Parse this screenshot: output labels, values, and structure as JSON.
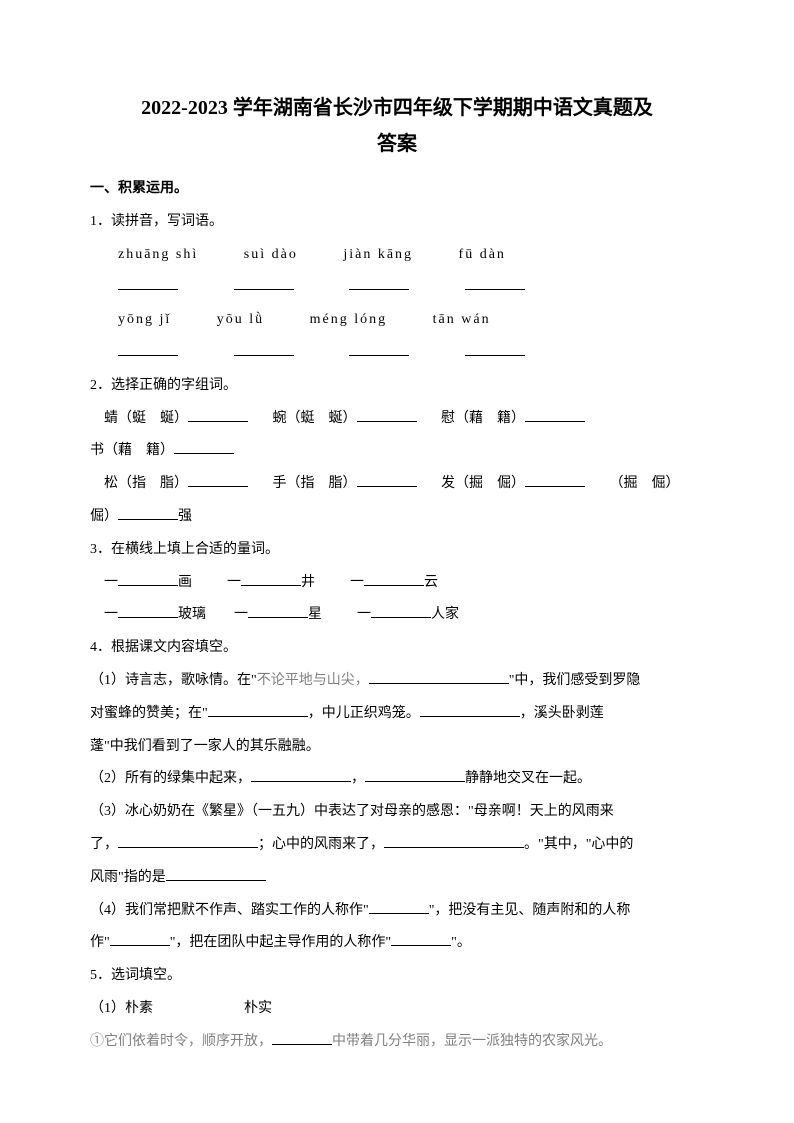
{
  "title_line1": "2022-2023 学年湖南省长沙市四年级下学期期中语文真题及",
  "title_line2": "答案",
  "section1": "一、积累运用。",
  "q1": "1．读拼音，写词语。",
  "pinyin": {
    "row1": {
      "p1": "zhuāng shì",
      "p2": "suì dào",
      "p3": "jiàn kāng",
      "p4": "fū dàn"
    },
    "row2": {
      "p1": "yōng jǐ",
      "p2": "yōu lǜ",
      "p3": "méng lóng",
      "p4": "tān wán"
    }
  },
  "q2": "2．选择正确的字组词。",
  "q2_items": {
    "i1_pre": "蜻（蜓　蜒）",
    "i2_pre": "蜿（蜓　蜒）",
    "i3_pre": "慰（藉　籍）",
    "i4_pre": "书（藉　籍）",
    "i5_pre": "松（指　脂）",
    "i6_pre": "手（指　脂）",
    "i7_pre": "发（掘　倔）",
    "i8_pre": "（掘　倔）",
    "i8_suf": "强"
  },
  "q3": "3．在横线上填上合适的量词。",
  "q3_items": {
    "i1": "画",
    "i2": "井",
    "i3": "云",
    "i4": "玻璃",
    "i5": "星",
    "i6": "人家"
  },
  "q4": "4．根据课文内容填空。",
  "q4_1a": "（1）诗言志，歌咏情。在\"",
  "q4_1b": "不论平地与山尖，",
  "q4_1c": "\"中，我们感受到罗隐",
  "q4_1d": "对蜜蜂的赞美；在\"",
  "q4_1e": "，中儿正织鸡笼。",
  "q4_1f": "，溪头卧剥莲",
  "q4_1g": "蓬\"中我们看到了一家人的其乐融融。",
  "q4_2a": "（2）所有的绿集中起来，",
  "q4_2b": "，",
  "q4_2c": "静静地交叉在一起。",
  "q4_3a": "（3）冰心奶奶在《繁星》（一五九）中表达了对母亲的感恩：\"母亲啊！天上的风雨来",
  "q4_3b": "了，",
  "q4_3c": "；心中的风雨来了，",
  "q4_3d": "。\"其中，\"心中的",
  "q4_3e": "风雨\"指的是",
  "q4_4a": "（4）我们常把默不作声、踏实工作的人称作\"",
  "q4_4b": "\"，把没有主见、随声附和的人称",
  "q4_4c": "作\"",
  "q4_4d": "\"，把在团队中起主导作用的人称作\"",
  "q4_4e": "\"。",
  "q5": "5．选词填空。",
  "q5_1": "（1）朴素",
  "q5_1b": "朴实",
  "q5_line1a": "①它们依着时令，顺序开放，",
  "q5_line1b": "中带着几分华丽，显示一派独特的农家风光。"
}
